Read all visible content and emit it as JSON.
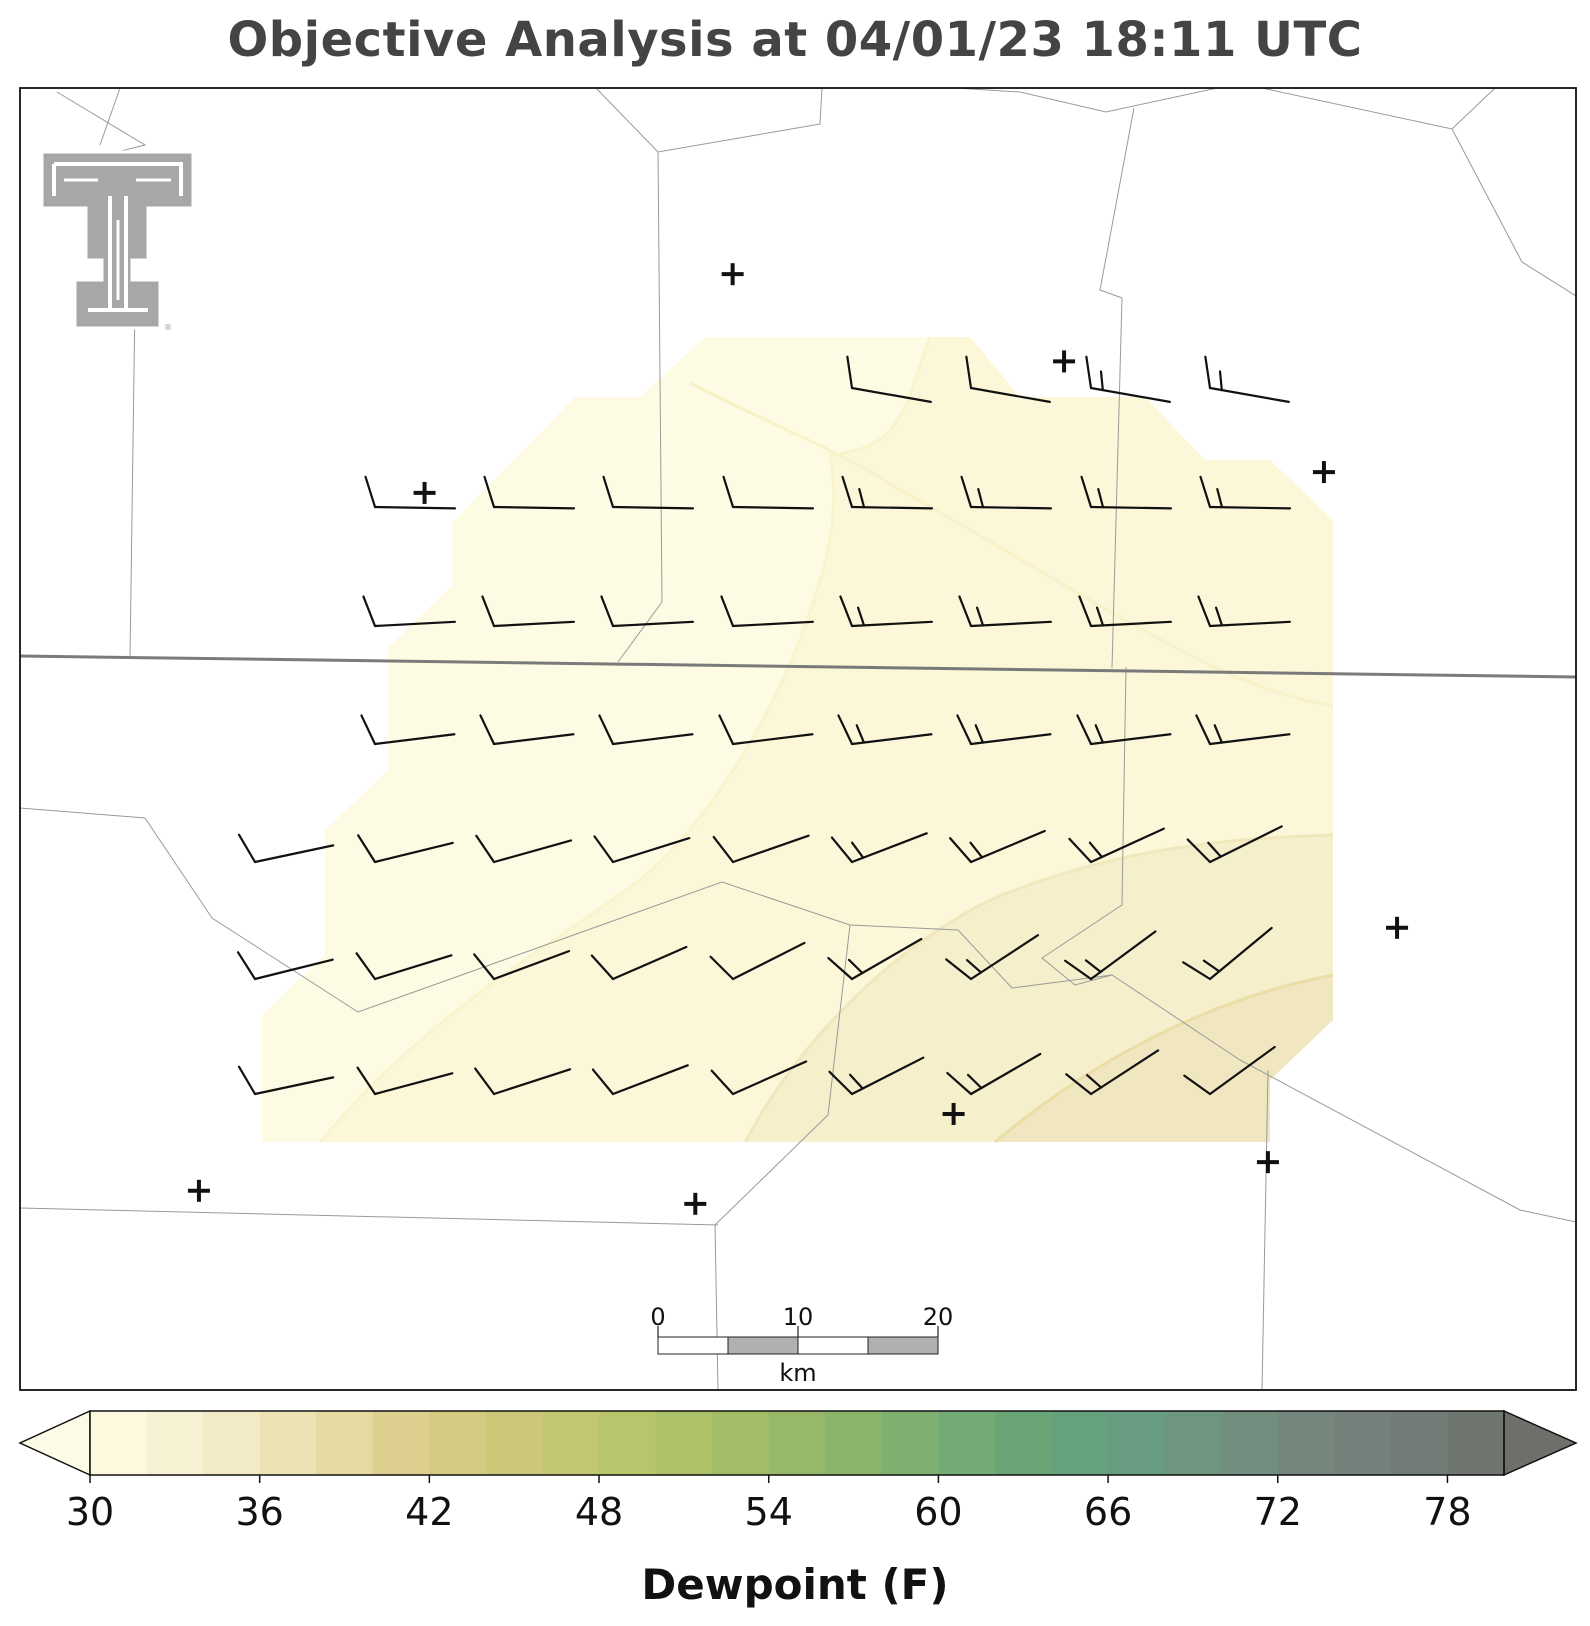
{
  "title": "Objective Analysis at 04/01/23 18:11 UTC",
  "colorbar": {
    "label": "Dewpoint (F)",
    "ticks": [
      "30",
      "36",
      "42",
      "48",
      "54",
      "60",
      "66",
      "72",
      "78"
    ],
    "range": [
      30,
      80
    ],
    "step": 2,
    "colors": [
      "#fcf9df",
      "#f7f2d4",
      "#f2ebc5",
      "#ece2b3",
      "#e6d9a1",
      "#ddd08f",
      "#d4cb82",
      "#cbc977",
      "#c2c670",
      "#b8c56a",
      "#adc167",
      "#a2bd66",
      "#97b868",
      "#8bb46b",
      "#7fb06f",
      "#74ab74",
      "#6aa578",
      "#65a17d",
      "#689c80",
      "#6d9580",
      "#728e7f",
      "#75877d",
      "#74807a",
      "#727b75",
      "#6f756f"
    ],
    "extend_min_color": "#fdfbe6",
    "extend_max_color": "#6c7068"
  },
  "scale_bar": {
    "labels": [
      "0",
      "10",
      "20"
    ],
    "unit": "km"
  },
  "stations": [
    {
      "type": "plus",
      "lon": 0.458,
      "lat": 0.143
    },
    {
      "type": "plus",
      "lon": 0.671,
      "lat": 0.21
    },
    {
      "type": "plus",
      "lon": 0.838,
      "lat": 0.295
    },
    {
      "type": "plus",
      "lon": 0.26,
      "lat": 0.311
    },
    {
      "type": "plus",
      "lon": 0.885,
      "lat": 0.645
    },
    {
      "type": "plus",
      "lon": 0.6,
      "lat": 0.788
    },
    {
      "type": "plus",
      "lon": 0.802,
      "lat": 0.825
    },
    {
      "type": "plus",
      "lon": 0.115,
      "lat": 0.847
    },
    {
      "type": "plus",
      "lon": 0.434,
      "lat": 0.857
    }
  ],
  "chart_data": {
    "type": "heatmap",
    "title": "Objective Analysis at 04/01/23 18:11 UTC",
    "variable": "Dewpoint (F)",
    "colorbar_range": [
      30,
      80
    ],
    "dewpoint_contour_levels": [
      30,
      32,
      34,
      36
    ],
    "wind_barbs": {
      "note_units": "knots",
      "rows": [
        {
          "row": 1,
          "barbs": [
            5,
            5,
            10,
            10
          ]
        },
        {
          "row": 2,
          "barbs": [
            5,
            5,
            5,
            5,
            10,
            10,
            10,
            10
          ]
        },
        {
          "row": 3,
          "barbs": [
            5,
            5,
            5,
            5,
            10,
            10,
            10,
            10
          ]
        },
        {
          "row": 4,
          "barbs": [
            5,
            5,
            5,
            5,
            10,
            10,
            10,
            10
          ]
        },
        {
          "row": 5,
          "barbs": [
            5,
            5,
            5,
            5,
            5,
            10,
            10,
            10,
            10
          ]
        },
        {
          "row": 6,
          "barbs": [
            5,
            5,
            5,
            5,
            5,
            10,
            10,
            10,
            10
          ]
        },
        {
          "row": 7,
          "barbs": [
            5,
            5,
            5,
            5,
            5,
            10,
            10,
            10,
            5
          ]
        }
      ]
    }
  }
}
